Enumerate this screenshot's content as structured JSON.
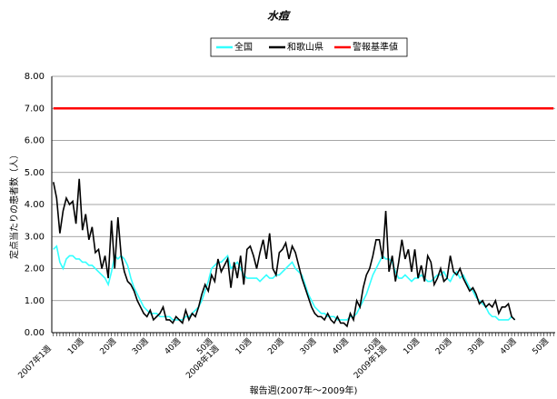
{
  "chart_data": {
    "type": "line",
    "title": "水痘",
    "xlabel": "報告週(2007年～2009年)",
    "ylabel": "定点当たりの患者数（人）",
    "legend": "top",
    "categories": [
      "2007年1週",
      null,
      null,
      null,
      null,
      null,
      null,
      null,
      null,
      "10週",
      null,
      null,
      null,
      null,
      null,
      null,
      null,
      null,
      null,
      "20週",
      null,
      null,
      null,
      null,
      null,
      null,
      null,
      null,
      null,
      "30週",
      null,
      null,
      null,
      null,
      null,
      null,
      null,
      null,
      null,
      "40週",
      null,
      null,
      null,
      null,
      null,
      null,
      null,
      null,
      null,
      "50週",
      null,
      null,
      "2008年1週",
      null,
      null,
      null,
      null,
      null,
      null,
      null,
      null,
      "10週",
      null,
      null,
      null,
      null,
      null,
      null,
      null,
      null,
      null,
      "20週",
      null,
      null,
      null,
      null,
      null,
      null,
      null,
      null,
      null,
      "30週",
      null,
      null,
      null,
      null,
      null,
      null,
      null,
      null,
      null,
      "40週",
      null,
      null,
      null,
      null,
      null,
      null,
      null,
      null,
      null,
      "50週",
      null,
      null,
      "2009年1週",
      null,
      null,
      null,
      null,
      null,
      null,
      null,
      null,
      "10週",
      null,
      null,
      null,
      null,
      null,
      null,
      null,
      null,
      null,
      "20週",
      null,
      null,
      null,
      null,
      null,
      null,
      null,
      null,
      null,
      "30週",
      null,
      null,
      null,
      null,
      null,
      null,
      null,
      null,
      null,
      "40週",
      null,
      null,
      null,
      null,
      null,
      null,
      null,
      null,
      null,
      "50週",
      null,
      null
    ],
    "series": [
      {
        "name": "全国",
        "color": "#33ffff",
        "values": [
          2.6,
          2.7,
          2.2,
          2.0,
          2.3,
          2.4,
          2.4,
          2.3,
          2.3,
          2.2,
          2.2,
          2.1,
          2.1,
          2.0,
          1.9,
          1.8,
          1.7,
          1.5,
          1.9,
          2.4,
          2.3,
          2.4,
          2.3,
          2.1,
          1.7,
          1.4,
          1.2,
          1.0,
          0.8,
          0.7,
          0.6,
          0.6,
          0.6,
          0.5,
          0.5,
          0.5,
          0.5,
          0.4,
          0.4,
          0.4,
          0.4,
          0.5,
          0.5,
          0.6,
          0.7,
          0.8,
          1.0,
          1.3,
          1.6,
          2.0,
          2.1,
          2.2,
          2.2,
          2.3,
          2.4,
          2.0,
          2.1,
          2.2,
          2.0,
          1.8,
          1.7,
          1.7,
          1.7,
          1.7,
          1.6,
          1.7,
          1.8,
          1.7,
          1.7,
          1.8,
          1.8,
          1.9,
          2.0,
          2.1,
          2.2,
          2.0,
          1.9,
          1.8,
          1.5,
          1.2,
          1.0,
          0.8,
          0.7,
          0.6,
          0.6,
          0.5,
          0.5,
          0.5,
          0.4,
          0.4,
          0.4,
          0.4,
          0.5,
          0.5,
          0.6,
          0.8,
          1.0,
          1.2,
          1.5,
          1.8,
          2.0,
          2.2,
          2.4,
          2.3,
          2.3,
          2.2,
          1.9,
          1.7,
          1.7,
          1.8,
          1.7,
          1.6,
          1.7,
          1.7,
          1.8,
          1.7,
          1.6,
          1.6,
          1.7,
          1.8,
          1.8,
          1.9,
          1.7,
          1.6,
          1.8,
          1.9,
          1.7,
          1.8,
          1.6,
          1.4,
          1.3,
          1.1,
          1.0,
          0.9,
          0.8,
          0.6,
          0.5,
          0.5,
          0.4,
          0.4,
          0.4,
          0.4,
          0.5,
          0.4,
          null,
          null,
          null,
          null,
          null,
          null,
          null,
          null,
          null,
          null,
          null,
          null
        ]
      },
      {
        "name": "和歌山県",
        "color": "#000000",
        "values": [
          4.7,
          4.2,
          3.1,
          3.8,
          4.2,
          4.0,
          4.1,
          3.4,
          4.8,
          3.2,
          3.7,
          2.9,
          3.3,
          2.5,
          2.6,
          2.0,
          2.4,
          1.7,
          3.5,
          2.0,
          3.6,
          2.4,
          1.9,
          1.6,
          1.5,
          1.3,
          1.0,
          0.8,
          0.6,
          0.5,
          0.7,
          0.4,
          0.5,
          0.6,
          0.8,
          0.4,
          0.4,
          0.3,
          0.5,
          0.4,
          0.3,
          0.7,
          0.4,
          0.6,
          0.5,
          0.8,
          1.2,
          1.5,
          1.3,
          1.8,
          1.6,
          2.3,
          1.9,
          2.1,
          2.3,
          1.4,
          2.2,
          1.7,
          2.4,
          1.5,
          2.6,
          2.7,
          2.4,
          2.0,
          2.5,
          2.9,
          2.3,
          3.1,
          2.0,
          1.8,
          2.5,
          2.6,
          2.8,
          2.3,
          2.7,
          2.5,
          2.1,
          1.7,
          1.4,
          1.1,
          0.8,
          0.6,
          0.5,
          0.5,
          0.4,
          0.6,
          0.4,
          0.3,
          0.5,
          0.3,
          0.3,
          0.2,
          0.6,
          0.4,
          1.0,
          0.8,
          1.4,
          1.8,
          2.0,
          2.4,
          2.9,
          2.9,
          2.3,
          3.8,
          1.9,
          2.4,
          1.6,
          2.2,
          2.9,
          2.3,
          2.6,
          1.9,
          2.6,
          1.7,
          2.1,
          1.6,
          2.4,
          2.2,
          1.5,
          1.7,
          2.0,
          1.6,
          1.7,
          2.4,
          1.9,
          1.8,
          2.0,
          1.7,
          1.5,
          1.3,
          1.4,
          1.2,
          0.9,
          1.0,
          0.8,
          0.9,
          0.8,
          1.0,
          0.6,
          0.8,
          0.8,
          0.9,
          0.5,
          0.4,
          null,
          null,
          null,
          null,
          null,
          null,
          null,
          null,
          null,
          null,
          null,
          null
        ]
      },
      {
        "name": "警報基準値",
        "color": "#ff0000",
        "values": [
          7,
          7,
          7,
          7,
          7,
          7,
          7,
          7,
          7,
          7,
          7,
          7,
          7,
          7,
          7,
          7,
          7,
          7,
          7,
          7,
          7,
          7,
          7,
          7,
          7,
          7,
          7,
          7,
          7,
          7,
          7,
          7,
          7,
          7,
          7,
          7,
          7,
          7,
          7,
          7,
          7,
          7,
          7,
          7,
          7,
          7,
          7,
          7,
          7,
          7,
          7,
          7,
          7,
          7,
          7,
          7,
          7,
          7,
          7,
          7,
          7,
          7,
          7,
          7,
          7,
          7,
          7,
          7,
          7,
          7,
          7,
          7,
          7,
          7,
          7,
          7,
          7,
          7,
          7,
          7,
          7,
          7,
          7,
          7,
          7,
          7,
          7,
          7,
          7,
          7,
          7,
          7,
          7,
          7,
          7,
          7,
          7,
          7,
          7,
          7,
          7,
          7,
          7,
          7,
          7,
          7,
          7,
          7,
          7,
          7,
          7,
          7,
          7,
          7,
          7,
          7,
          7,
          7,
          7,
          7,
          7,
          7,
          7,
          7,
          7,
          7,
          7,
          7,
          7,
          7,
          7,
          7,
          7,
          7,
          7,
          7,
          7,
          7,
          7,
          7,
          7,
          7,
          7,
          7,
          7,
          7,
          7,
          7,
          7,
          7,
          7,
          7,
          7,
          7,
          7,
          7
        ]
      }
    ],
    "ylim": [
      0,
      8
    ],
    "yticks": [
      {
        "value": 0,
        "label": "0.00"
      },
      {
        "value": 1,
        "label": "1.00"
      },
      {
        "value": 2,
        "label": "2.00"
      },
      {
        "value": 3,
        "label": "3.00"
      },
      {
        "value": 4,
        "label": "4.00"
      },
      {
        "value": 5,
        "label": "5.00"
      },
      {
        "value": 6,
        "label": "6.00"
      },
      {
        "value": 7,
        "label": "7.00"
      },
      {
        "value": 8,
        "label": "8.00"
      }
    ],
    "grid": true
  }
}
